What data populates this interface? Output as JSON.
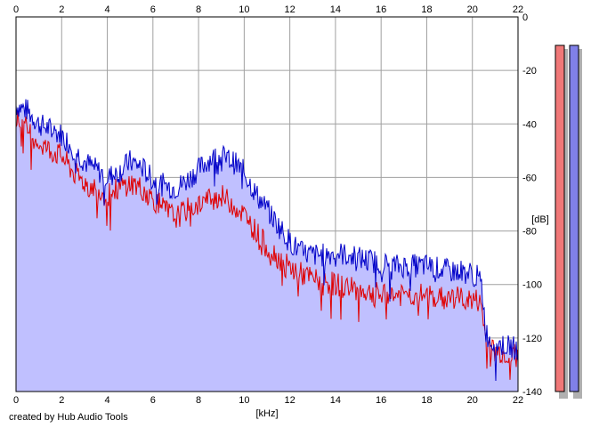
{
  "chart_data": {
    "type": "area",
    "xlabel": "[kHz]",
    "ylabel": "[dB]",
    "xlim": [
      0,
      22
    ],
    "ylim": [
      -140,
      0
    ],
    "x_ticks": [
      "0",
      "2",
      "4",
      "6",
      "8",
      "10",
      "12",
      "14",
      "16",
      "18",
      "20",
      "22"
    ],
    "x_ticks_top": [
      "0",
      "2",
      "4",
      "6",
      "8",
      "10",
      "12",
      "14",
      "16",
      "18",
      "20",
      "22"
    ],
    "y_ticks": [
      "0",
      "-20",
      "-40",
      "-60",
      "-80",
      "-100",
      "-120",
      "-140"
    ],
    "grid": true,
    "x": [
      0,
      0.5,
      1,
      1.5,
      2,
      2.5,
      3,
      3.5,
      4,
      4.5,
      5,
      5.5,
      6,
      6.5,
      7,
      7.5,
      8,
      8.5,
      9,
      9.5,
      10,
      10.5,
      11,
      11.5,
      12,
      12.5,
      13,
      13.5,
      14,
      14.5,
      15,
      15.5,
      16,
      16.5,
      17,
      17.5,
      18,
      18.5,
      19,
      19.5,
      20,
      20.2,
      20.4,
      20.6,
      20.8,
      21,
      21.5,
      22
    ],
    "series": [
      {
        "color": "#0000c8",
        "fill": "#c0c0ff",
        "values": [
          -33,
          -35,
          -40,
          -42,
          -44,
          -49,
          -54,
          -57,
          -60,
          -58,
          -54,
          -56,
          -61,
          -63,
          -64,
          -61,
          -57,
          -53,
          -52,
          -54,
          -58,
          -66,
          -72,
          -78,
          -84,
          -88,
          -89,
          -89,
          -88,
          -89,
          -90,
          -91,
          -92,
          -93,
          -93,
          -93,
          -93,
          -94,
          -95,
          -95,
          -96,
          -97,
          -100,
          -118,
          -121,
          -122,
          -123,
          -124
        ]
      },
      {
        "color": "#e00000",
        "values": [
          -38,
          -42,
          -47,
          -50,
          -52,
          -58,
          -62,
          -64,
          -67,
          -64,
          -62,
          -64,
          -68,
          -72,
          -75,
          -72,
          -70,
          -68,
          -67,
          -70,
          -74,
          -80,
          -86,
          -90,
          -94,
          -96,
          -98,
          -99,
          -100,
          -101,
          -102,
          -103,
          -104,
          -104,
          -104,
          -104,
          -104,
          -105,
          -105,
          -105,
          -106,
          -106,
          -108,
          -122,
          -124,
          -125,
          -126,
          -127
        ]
      }
    ],
    "level_meters": [
      {
        "color": "#f07878"
      },
      {
        "color": "#8080e8"
      }
    ]
  },
  "footer": {
    "credit": "created by Hub Audio Tools"
  }
}
